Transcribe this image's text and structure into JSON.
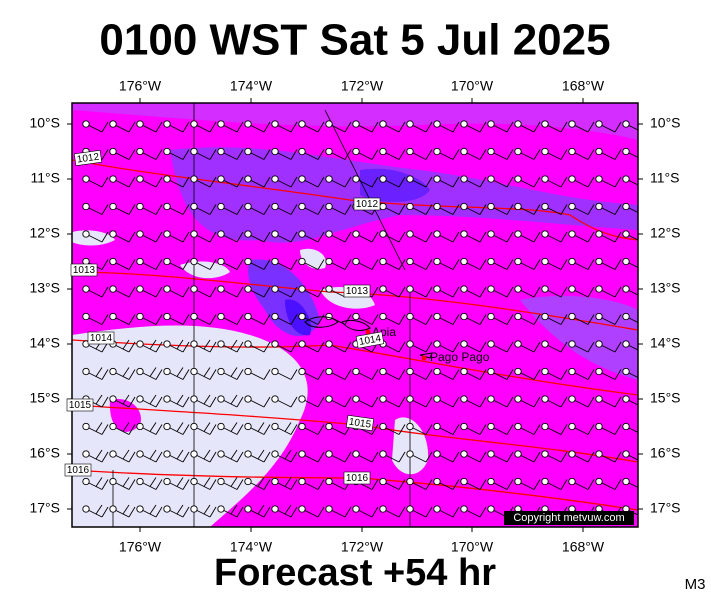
{
  "header": {
    "title": "0100 WST Sat 5 Jul 2025"
  },
  "map": {
    "longitude_labels": [
      "176°W",
      "174°W",
      "172°W",
      "170°W",
      "168°W"
    ],
    "latitude_labels": [
      "10°S",
      "11°S",
      "12°S",
      "13°S",
      "14°S",
      "15°S",
      "16°S",
      "17°S"
    ],
    "isobar_labels": [
      "1012",
      "1012",
      "1013",
      "1013",
      "1014",
      "1014",
      "1015",
      "1015",
      "1016",
      "1016"
    ],
    "places": [
      "Apia",
      "Pago Pago"
    ],
    "copyright": "Copyright metvuw.com"
  },
  "footer": {
    "forecast": "Forecast +54 hr",
    "model": "M3"
  }
}
